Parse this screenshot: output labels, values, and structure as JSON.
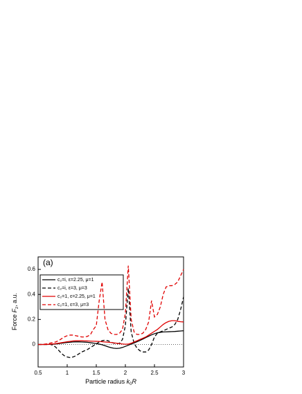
{
  "chart_data": {
    "type": "line",
    "annotation": "(a)",
    "y_label": {
      "text": "Force ",
      "var": "F",
      "sub": "z",
      "rest": ", a.u."
    },
    "x_label": {
      "text": "Particle radius ",
      "var": "k",
      "sub": "0",
      "rest": "R"
    },
    "xlim": [
      0.5,
      3.0
    ],
    "xticks": [
      0.5,
      1.0,
      1.5,
      2.0,
      2.5,
      3.0
    ],
    "ylim": [
      -0.18,
      0.7
    ],
    "yticks": [
      0.0,
      0.2,
      0.4,
      0.6
    ],
    "hline": 0,
    "legend": "upper left",
    "x": [
      0.5,
      0.55,
      0.6,
      0.65,
      0.7,
      0.75,
      0.8,
      0.85,
      0.9,
      0.95,
      1.0,
      1.05,
      1.1,
      1.15,
      1.2,
      1.25,
      1.3,
      1.35,
      1.4,
      1.45,
      1.5,
      1.55,
      1.6,
      1.65,
      1.7,
      1.75,
      1.8,
      1.85,
      1.9,
      1.95,
      2.0,
      2.05,
      2.1,
      2.15,
      2.2,
      2.25,
      2.3,
      2.35,
      2.4,
      2.45,
      2.5,
      2.55,
      2.6,
      2.65,
      2.7,
      2.75,
      2.8,
      2.85,
      2.9,
      2.95,
      3.0
    ],
    "series": [
      {
        "name": "c₂=i, ε=2.25, μ=1",
        "color": "#000000",
        "dashed": false,
        "values": [
          0,
          0,
          0,
          0,
          0.001,
          0.002,
          0.004,
          0.006,
          0.01,
          0.013,
          0.016,
          0.018,
          0.02,
          0.021,
          0.021,
          0.02,
          0.019,
          0.017,
          0.014,
          0.011,
          0.007,
          0.003,
          -0.002,
          -0.01,
          -0.018,
          -0.025,
          -0.03,
          -0.032,
          -0.03,
          -0.024,
          -0.015,
          -0.006,
          0.003,
          0.012,
          0.022,
          0.032,
          0.043,
          0.055,
          0.066,
          0.077,
          0.086,
          0.093,
          0.097,
          0.1,
          0.101,
          0.102,
          0.103,
          0.104,
          0.106,
          0.108,
          0.11
        ]
      },
      {
        "name": "c₂=i, ε=3, μ=3",
        "color": "#000000",
        "dashed": true,
        "values": [
          0,
          0,
          0,
          0,
          0.002,
          -0.005,
          -0.02,
          -0.045,
          -0.07,
          -0.09,
          -0.1,
          -0.105,
          -0.1,
          -0.09,
          -0.075,
          -0.06,
          -0.05,
          -0.04,
          -0.025,
          -0.01,
          0.005,
          0.02,
          0.03,
          0.035,
          0.03,
          0.02,
          0.01,
          0.005,
          0.01,
          0.04,
          0.15,
          0.45,
          0.1,
          0.01,
          -0.03,
          -0.05,
          -0.06,
          -0.06,
          -0.045,
          0.0,
          0.06,
          0.09,
          0.1,
          0.11,
          0.12,
          0.13,
          0.14,
          0.16,
          0.2,
          0.28,
          0.38
        ]
      },
      {
        "name": "c₂=1, ε=2.25, μ=1",
        "color": "#e00000",
        "dashed": false,
        "values": [
          0,
          0,
          0,
          0.001,
          0.002,
          0.004,
          0.007,
          0.01,
          0.014,
          0.018,
          0.022,
          0.025,
          0.028,
          0.03,
          0.03,
          0.03,
          0.029,
          0.028,
          0.027,
          0.026,
          0.025,
          0.024,
          0.022,
          0.02,
          0.018,
          0.016,
          0.013,
          0.01,
          0.007,
          0.004,
          0.002,
          0.003,
          0.01,
          0.02,
          0.03,
          0.04,
          0.05,
          0.06,
          0.075,
          0.09,
          0.105,
          0.12,
          0.14,
          0.16,
          0.175,
          0.185,
          0.19,
          0.19,
          0.185,
          0.182,
          0.18
        ]
      },
      {
        "name": "c₂=1, ε=3, μ=3",
        "color": "#e00000",
        "dashed": true,
        "values": [
          0,
          0,
          0.002,
          0.005,
          0.01,
          0.015,
          0.02,
          0.03,
          0.045,
          0.06,
          0.07,
          0.075,
          0.075,
          0.07,
          0.065,
          0.06,
          0.06,
          0.065,
          0.08,
          0.12,
          0.15,
          0.35,
          0.5,
          0.2,
          0.12,
          0.09,
          0.08,
          0.08,
          0.09,
          0.12,
          0.25,
          0.63,
          0.2,
          0.1,
          0.08,
          0.08,
          0.09,
          0.12,
          0.18,
          0.35,
          0.22,
          0.24,
          0.3,
          0.4,
          0.46,
          0.47,
          0.47,
          0.48,
          0.5,
          0.55,
          0.6
        ]
      }
    ]
  }
}
